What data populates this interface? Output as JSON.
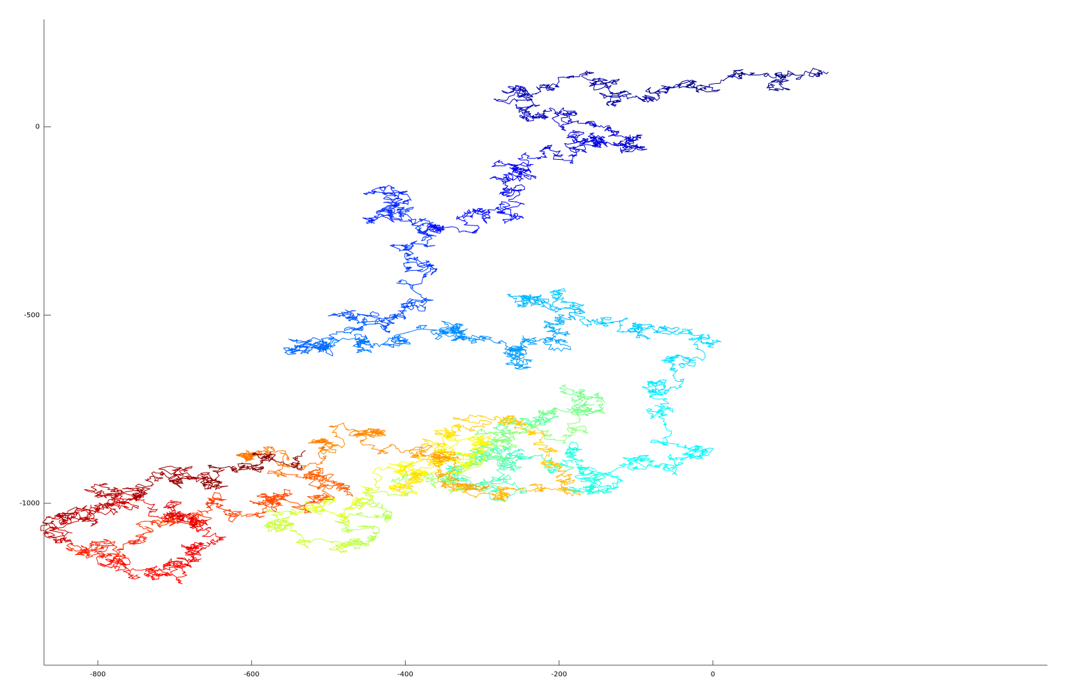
{
  "chart_data": {
    "type": "line",
    "title": "",
    "xlabel": "",
    "ylabel": "",
    "xlim": [
      -870,
      435
    ],
    "ylim": [
      -1430,
      285
    ],
    "xticks": [
      -800,
      -600,
      -400,
      -200,
      0
    ],
    "yticks": [
      0,
      -500,
      -1000
    ],
    "xtick_labels": [
      "-800",
      "-600",
      "-400",
      "-200",
      "0"
    ],
    "ytick_labels": [
      "0",
      "-500",
      "-1000"
    ],
    "grid": false,
    "legend": "none",
    "colormap": "jet",
    "series": [
      {
        "style": "2D random walk, colored by step index (blue → red)",
        "anchors": [
          [
            150,
            145
          ],
          [
            80,
            110
          ],
          [
            30,
            140
          ],
          [
            -40,
            120
          ],
          [
            -90,
            70
          ],
          [
            -140,
            110
          ],
          [
            -200,
            120
          ],
          [
            -250,
            100
          ],
          [
            -240,
            50
          ],
          [
            -200,
            30
          ],
          [
            -160,
            10
          ],
          [
            -110,
            -30
          ],
          [
            -120,
            -60
          ],
          [
            -150,
            -40
          ],
          [
            -180,
            -60
          ],
          [
            -220,
            -80
          ],
          [
            -240,
            -110
          ],
          [
            -260,
            -140
          ],
          [
            -270,
            -200
          ],
          [
            -300,
            -220
          ],
          [
            -330,
            -280
          ],
          [
            -380,
            -260
          ],
          [
            -410,
            -210
          ],
          [
            -440,
            -170
          ],
          [
            -400,
            -230
          ],
          [
            -360,
            -290
          ],
          [
            -380,
            -360
          ],
          [
            -390,
            -420
          ],
          [
            -400,
            -480
          ],
          [
            -430,
            -520
          ],
          [
            -480,
            -500
          ],
          [
            -520,
            -560
          ],
          [
            -550,
            -600
          ],
          [
            -500,
            -590
          ],
          [
            -460,
            -560
          ],
          [
            -420,
            -580
          ],
          [
            -380,
            -530
          ],
          [
            -340,
            -540
          ],
          [
            -300,
            -560
          ],
          [
            -260,
            -590
          ],
          [
            -240,
            -640
          ],
          [
            -230,
            -560
          ],
          [
            -200,
            -540
          ],
          [
            -190,
            -480
          ],
          [
            -240,
            -450
          ],
          [
            -200,
            -440
          ],
          [
            -150,
            -520
          ],
          [
            -100,
            -560
          ],
          [
            -50,
            -550
          ],
          [
            -20,
            -560
          ],
          [
            -60,
            -620
          ],
          [
            -80,
            -680
          ],
          [
            -70,
            -760
          ],
          [
            -60,
            -840
          ],
          [
            -40,
            -880
          ],
          [
            -80,
            -890
          ],
          [
            -120,
            -900
          ],
          [
            -130,
            -960
          ],
          [
            -160,
            -960
          ],
          [
            -170,
            -900
          ],
          [
            -200,
            -900
          ],
          [
            -250,
            -880
          ],
          [
            -300,
            -880
          ],
          [
            -330,
            -920
          ],
          [
            -300,
            -950
          ],
          [
            -250,
            -960
          ],
          [
            -280,
            -900
          ],
          [
            -300,
            -860
          ],
          [
            -260,
            -790
          ],
          [
            -220,
            -760
          ],
          [
            -170,
            -740
          ],
          [
            -150,
            -710
          ],
          [
            -180,
            -750
          ],
          [
            -230,
            -790
          ],
          [
            -290,
            -810
          ],
          [
            -330,
            -870
          ],
          [
            -320,
            -930
          ],
          [
            -360,
            -960
          ],
          [
            -400,
            -980
          ],
          [
            -420,
            -1040
          ],
          [
            -440,
            -1080
          ],
          [
            -490,
            -1110
          ],
          [
            -530,
            -1100
          ],
          [
            -570,
            -1070
          ],
          [
            -540,
            -1030
          ],
          [
            -500,
            -990
          ],
          [
            -460,
            -1000
          ],
          [
            -430,
            -930
          ],
          [
            -380,
            -920
          ],
          [
            -350,
            -870
          ],
          [
            -300,
            -830
          ],
          [
            -340,
            -880
          ],
          [
            -380,
            -920
          ],
          [
            -420,
            -960
          ],
          [
            -400,
            -900
          ],
          [
            -370,
            -840
          ],
          [
            -320,
            -800
          ],
          [
            -260,
            -780
          ],
          [
            -220,
            -840
          ],
          [
            -200,
            -900
          ],
          [
            -230,
            -960
          ],
          [
            -270,
            -980
          ],
          [
            -300,
            -960
          ],
          [
            -330,
            -940
          ],
          [
            -360,
            -900
          ],
          [
            -400,
            -860
          ],
          [
            -440,
            -820
          ],
          [
            -480,
            -790
          ],
          [
            -520,
            -840
          ],
          [
            -560,
            -860
          ],
          [
            -600,
            -880
          ],
          [
            -570,
            -920
          ],
          [
            -520,
            -930
          ],
          [
            -480,
            -960
          ],
          [
            -520,
            -990
          ],
          [
            -560,
            -990
          ],
          [
            -590,
            -1000
          ],
          [
            -620,
            -1030
          ],
          [
            -660,
            -1020
          ],
          [
            -700,
            -1050
          ],
          [
            -740,
            -1080
          ],
          [
            -780,
            -1110
          ],
          [
            -820,
            -1130
          ],
          [
            -800,
            -1160
          ],
          [
            -760,
            -1190
          ],
          [
            -720,
            -1190
          ],
          [
            -690,
            -1160
          ],
          [
            -660,
            -1120
          ],
          [
            -640,
            -1090
          ],
          [
            -660,
            -1050
          ],
          [
            -700,
            -1010
          ],
          [
            -740,
            -990
          ],
          [
            -780,
            -980
          ],
          [
            -800,
            -1020
          ],
          [
            -840,
            -1040
          ],
          [
            -860,
            -1050
          ],
          [
            -820,
            -1040
          ],
          [
            -790,
            -1000
          ],
          [
            -750,
            -960
          ],
          [
            -730,
            -920
          ],
          [
            -700,
            -940
          ],
          [
            -660,
            -950
          ],
          [
            -620,
            -910
          ],
          [
            -580,
            -880
          ],
          [
            -530,
            -860
          ]
        ]
      }
    ]
  }
}
